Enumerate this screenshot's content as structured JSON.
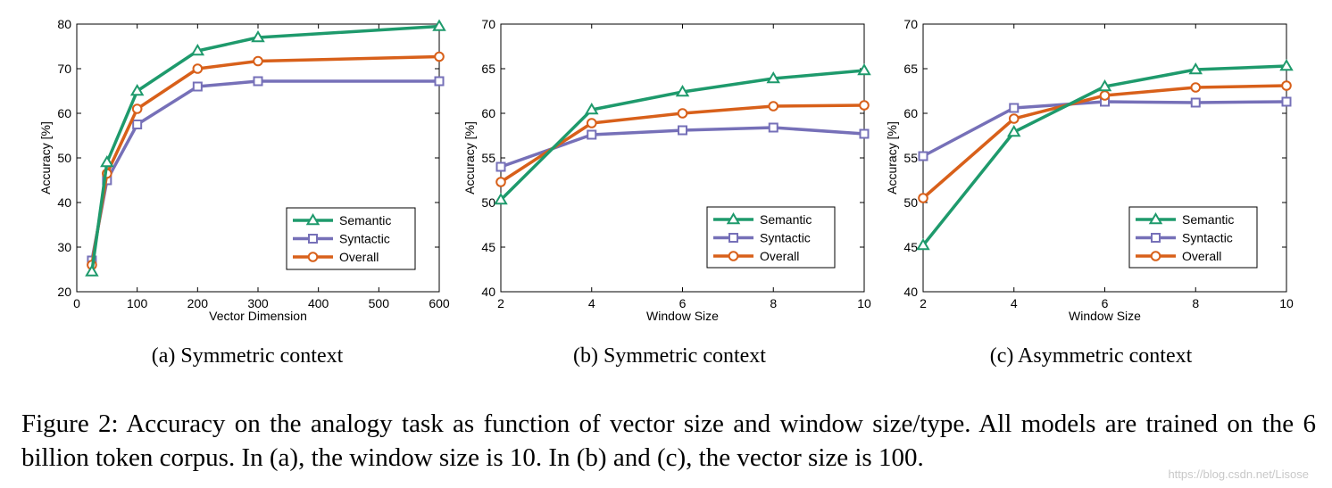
{
  "series_styles": [
    {
      "name": "Semantic",
      "color": "#1e9a6c",
      "marker": "triangle"
    },
    {
      "name": "Syntactic",
      "color": "#7670b8",
      "marker": "square"
    },
    {
      "name": "Overall",
      "color": "#d8601a",
      "marker": "circle"
    }
  ],
  "chart_data": [
    {
      "id": "a",
      "type": "line",
      "xlabel": "Vector Dimension",
      "ylabel": "Accuracy [%]",
      "xlim": [
        0,
        600
      ],
      "ylim": [
        20,
        80
      ],
      "xticks": [
        0,
        100,
        200,
        300,
        400,
        500,
        600
      ],
      "yticks": [
        20,
        30,
        40,
        50,
        60,
        70,
        80
      ],
      "legend_position": "lower-right",
      "caption": "(a)  Symmetric context",
      "x": [
        25,
        50,
        100,
        200,
        300,
        600
      ],
      "series": [
        {
          "name": "Semantic",
          "values": [
            24.5,
            49,
            65,
            74,
            77,
            79.5
          ]
        },
        {
          "name": "Syntactic",
          "values": [
            27,
            45,
            57.5,
            66,
            67.2,
            67.2
          ]
        },
        {
          "name": "Overall",
          "values": [
            26,
            46.5,
            61,
            70,
            71.7,
            72.7
          ]
        }
      ]
    },
    {
      "id": "b",
      "type": "line",
      "xlabel": "Window Size",
      "ylabel": "Accuracy [%]",
      "xlim": [
        2,
        10
      ],
      "ylim": [
        40,
        70
      ],
      "xticks": [
        2,
        4,
        6,
        8,
        10
      ],
      "yticks": [
        40,
        45,
        50,
        55,
        60,
        65,
        70
      ],
      "legend_position": "lower-right",
      "caption": "(b)  Symmetric context",
      "x": [
        2,
        4,
        6,
        8,
        10
      ],
      "series": [
        {
          "name": "Semantic",
          "values": [
            50.3,
            60.4,
            62.4,
            63.9,
            64.8
          ]
        },
        {
          "name": "Syntactic",
          "values": [
            54,
            57.6,
            58.1,
            58.4,
            57.7
          ]
        },
        {
          "name": "Overall",
          "values": [
            52.3,
            58.9,
            60,
            60.8,
            60.9
          ]
        }
      ]
    },
    {
      "id": "c",
      "type": "line",
      "xlabel": "Window Size",
      "ylabel": "Accuracy [%]",
      "xlim": [
        2,
        10
      ],
      "ylim": [
        40,
        70
      ],
      "xticks": [
        2,
        4,
        6,
        8,
        10
      ],
      "yticks": [
        40,
        45,
        50,
        55,
        60,
        65,
        70
      ],
      "legend_position": "lower-right",
      "caption": "(c)  Asymmetric context",
      "x": [
        2,
        4,
        6,
        8,
        10
      ],
      "series": [
        {
          "name": "Semantic",
          "values": [
            45.2,
            57.9,
            63,
            64.9,
            65.3
          ]
        },
        {
          "name": "Syntactic",
          "values": [
            55.2,
            60.6,
            61.3,
            61.2,
            61.3
          ]
        },
        {
          "name": "Overall",
          "values": [
            50.5,
            59.4,
            62,
            62.9,
            63.1
          ]
        }
      ]
    }
  ],
  "caption": "Figure 2: Accuracy on the analogy task as function of vector size and window size/type. All models are trained on the 6 billion token corpus. In (a), the window size is 10. In (b) and (c), the vector size is 100.",
  "watermark": "https://blog.csdn.net/Lisose"
}
